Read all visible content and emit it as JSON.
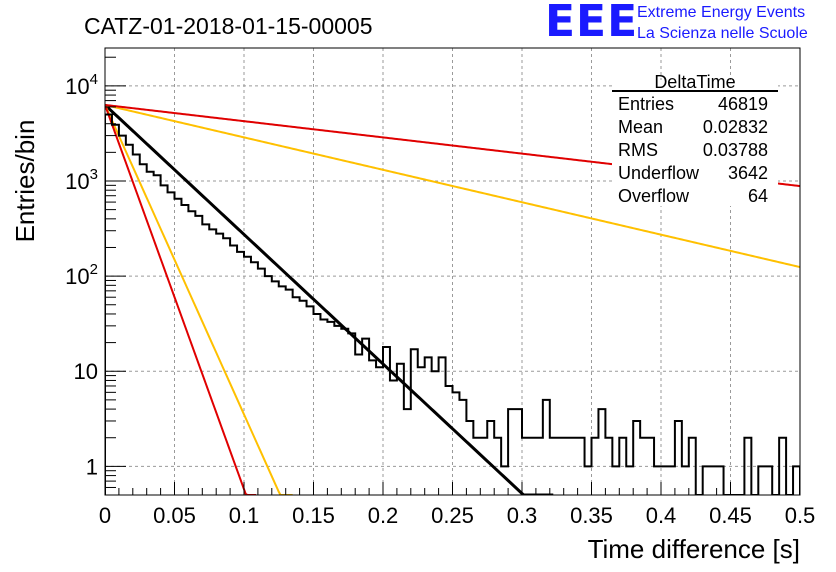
{
  "logo": {
    "mark": "EEE",
    "line1": "Extreme Energy Events",
    "line2": "La Scienza nelle Scuole",
    "color": "#1a1aff"
  },
  "chart_data": {
    "type": "histogram",
    "title": "CATZ-01-2018-01-15-00005",
    "xlabel": "Time difference [s]",
    "ylabel": "Entries/bin",
    "xlim": [
      0,
      0.5
    ],
    "ylim": [
      0.5,
      25000
    ],
    "yscale": "log",
    "grid": true,
    "x_ticks": [
      "0",
      "0.05",
      "0.1",
      "0.15",
      "0.2",
      "0.25",
      "0.3",
      "0.35",
      "0.4",
      "0.45",
      "0.5"
    ],
    "y_ticks": [
      "1",
      "10",
      "10²",
      "10³",
      "10⁴"
    ],
    "stats_box": {
      "title": "DeltaTime",
      "placement": "top-right",
      "rows": [
        {
          "label": "Entries",
          "value": "46819"
        },
        {
          "label": "Mean",
          "value": "0.02832"
        },
        {
          "label": "RMS",
          "value": "0.03788"
        },
        {
          "label": "Underflow",
          "value": "3642"
        },
        {
          "label": "Overflow",
          "value": "64"
        }
      ]
    },
    "histogram": {
      "bin_width": 0.005,
      "color": "#000000",
      "counts": [
        5000,
        3900,
        3000,
        2400,
        1900,
        1500,
        1250,
        1150,
        900,
        760,
        650,
        560,
        480,
        430,
        350,
        310,
        280,
        250,
        210,
        180,
        160,
        140,
        120,
        100,
        88,
        78,
        72,
        60,
        55,
        48,
        40,
        35,
        33,
        30,
        28,
        25,
        15,
        22,
        13,
        11,
        18,
        8,
        12,
        4,
        17,
        11,
        14,
        10,
        14,
        7,
        6,
        5,
        3,
        2,
        2,
        3,
        2,
        1,
        4,
        4,
        2,
        2,
        2,
        5,
        2,
        2,
        2,
        2,
        2,
        1,
        2,
        4,
        2,
        1,
        2,
        1,
        3,
        2,
        2,
        1,
        1,
        1,
        3,
        1,
        2,
        0.5,
        1,
        1,
        1,
        0.5,
        0.5,
        0.5,
        2,
        0.5,
        1,
        1,
        0.5,
        2,
        0.5,
        1
      ]
    },
    "series": [
      {
        "type": "exponential",
        "color": "#000000",
        "a": 6300,
        "tau": 0.0319
      },
      {
        "type": "exponential",
        "color": "#ffc000",
        "a": 6300,
        "tau": 0.01335
      },
      {
        "type": "exponential",
        "color": "#ffc000",
        "a": 6300,
        "tau": 0.1274
      },
      {
        "type": "exponential",
        "color": "#e00000",
        "a": 6300,
        "tau": 0.01075
      },
      {
        "type": "exponential",
        "color": "#e00000",
        "a": 6300,
        "tau": 0.2546
      }
    ]
  }
}
